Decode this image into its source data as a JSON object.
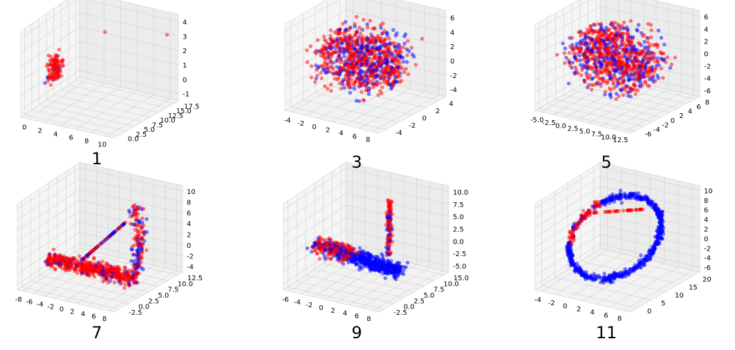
{
  "colors": {
    "series_a": "#ff0000",
    "series_b": "#0000ff",
    "pane": "#f2f2f2",
    "grid": "#cfcfcf"
  },
  "chart_data": [
    {
      "type": "scatter",
      "panel_label": "1",
      "x_ticks": [
        "0",
        "2",
        "4",
        "6",
        "8",
        "10"
      ],
      "y_ticks": [
        "0.0",
        "2.5",
        "5.0",
        "7.5",
        "10.0",
        "12.5",
        "15.0",
        "17.5"
      ],
      "z_ticks": [
        "-1",
        "0",
        "1",
        "2",
        "3",
        "4"
      ],
      "xlim": [
        -1,
        11
      ],
      "ylim": [
        0,
        18
      ],
      "zlim": [
        -1.5,
        4.5
      ],
      "shape": "blob-with-outliers"
    },
    {
      "type": "scatter",
      "panel_label": "3",
      "x_ticks": [
        "-4",
        "-2",
        "0",
        "2",
        "4",
        "6",
        "8"
      ],
      "y_ticks": [
        "-4",
        "-2",
        "0",
        "2",
        "4"
      ],
      "z_ticks": [
        "-4",
        "-2",
        "0",
        "2",
        "4",
        "6"
      ],
      "xlim": [
        -5,
        9
      ],
      "ylim": [
        -5,
        5
      ],
      "zlim": [
        -5,
        6
      ],
      "shape": "dense-cloud"
    },
    {
      "type": "scatter",
      "panel_label": "5",
      "x_ticks": [
        "-5.0",
        "-2.5",
        "0.0",
        "2.5",
        "5.0",
        "7.5",
        "10.0",
        "12.5"
      ],
      "y_ticks": [
        "-6",
        "-4",
        "-2",
        "0",
        "2",
        "4",
        "6",
        "8"
      ],
      "z_ticks": [
        "-6",
        "-4",
        "-2",
        "0",
        "2",
        "4",
        "6"
      ],
      "xlim": [
        -6,
        13
      ],
      "ylim": [
        -7,
        9
      ],
      "zlim": [
        -7,
        7
      ],
      "shape": "dense-cloud"
    },
    {
      "type": "scatter",
      "panel_label": "7",
      "x_ticks": [
        "-8",
        "-6",
        "-4",
        "-2",
        "0",
        "2",
        "4",
        "6",
        "8"
      ],
      "y_ticks": [
        "-2.5",
        "0.0",
        "2.5",
        "5.0",
        "7.5",
        "10.0",
        "12.5"
      ],
      "z_ticks": [
        "-4",
        "-2",
        "0",
        "2",
        "4",
        "6",
        "8",
        "10"
      ],
      "xlim": [
        -8,
        9
      ],
      "ylim": [
        -3,
        13
      ],
      "zlim": [
        -5,
        11
      ],
      "shape": "curved-band"
    },
    {
      "type": "scatter",
      "panel_label": "9",
      "x_ticks": [
        "-6",
        "-4",
        "-2",
        "0",
        "2",
        "4",
        "6",
        "8"
      ],
      "y_ticks": [
        "-2.5",
        "0.0",
        "2.5",
        "5.0",
        "7.5",
        "10.0",
        "15.0"
      ],
      "z_ticks": [
        "-5.0",
        "-2.5",
        "0.0",
        "2.5",
        "5.0",
        "7.5",
        "10.0"
      ],
      "xlim": [
        -7,
        9
      ],
      "ylim": [
        -3,
        16
      ],
      "zlim": [
        -6,
        12
      ],
      "shape": "band-with-spike"
    },
    {
      "type": "scatter",
      "panel_label": "11",
      "x_ticks": [
        "-4",
        "-2",
        "0",
        "2",
        "4",
        "6",
        "8"
      ],
      "y_ticks": [
        "0",
        "5",
        "10",
        "15",
        "20"
      ],
      "z_ticks": [
        "-6",
        "-4",
        "-2",
        "0",
        "2",
        "4",
        "6",
        "8",
        "10"
      ],
      "xlim": [
        -5,
        9
      ],
      "ylim": [
        -2,
        22
      ],
      "zlim": [
        -7,
        11
      ],
      "shape": "ring"
    }
  ]
}
